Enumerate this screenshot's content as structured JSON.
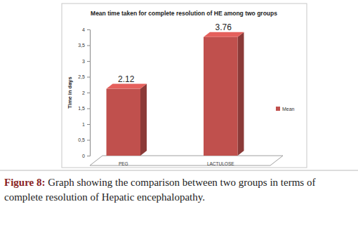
{
  "chart_data": {
    "type": "bar",
    "title": "Mean time taken for complete resolution of HE among two groups",
    "y_label": "Time in days",
    "categories": [
      "PEG",
      "LACTULOSE"
    ],
    "series": [
      {
        "name": "Mean",
        "color": "#c0504d",
        "values": [
          2.12,
          3.76
        ]
      }
    ],
    "ylim": [
      0,
      4
    ],
    "yticks": [
      0,
      {
        "value": 0.5,
        "label": "0,5"
      },
      1,
      {
        "value": 1.5,
        "label": "1,5"
      },
      2,
      {
        "value": 2.5,
        "label": "2,5"
      },
      3,
      {
        "value": 3.5,
        "label": "3,5"
      },
      4
    ],
    "grid": false,
    "legend": "right",
    "data_labels": true
  },
  "caption": {
    "label": "Figure 8:",
    "text": "Graph showing the comparison between two groups in terms of complete resolution of Hepatic encephalopathy."
  }
}
